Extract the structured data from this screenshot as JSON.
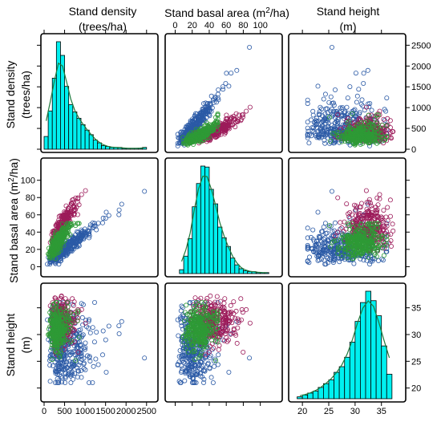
{
  "chart_data": {
    "type": "scatter-matrix",
    "variables": [
      {
        "key": "density",
        "label_line1": "Stand density",
        "label_line2": "(trees/ha)",
        "range": [
          0,
          2700
        ],
        "ticks": [
          0,
          500,
          1000,
          1500,
          2000,
          2500
        ]
      },
      {
        "key": "basal",
        "label_line1": "Stand basal area (m",
        "label_sup": "2",
        "label_line1_end": "/ha)",
        "range": [
          -8,
          122
        ],
        "ticks": [
          0,
          20,
          40,
          60,
          80,
          100
        ]
      },
      {
        "key": "height",
        "label_line1": "Stand height",
        "label_line2": "(m)",
        "range": [
          18,
          39
        ],
        "ticks": [
          20,
          25,
          30,
          35
        ]
      }
    ],
    "groups": [
      {
        "color": "#2B5AA6"
      },
      {
        "color": "#9C1B5A"
      },
      {
        "color": "#2E9A36"
      }
    ],
    "histograms": [
      {
        "variable": "density",
        "bin_start": 0,
        "bin_width": 100,
        "counts": [
          14,
          42,
          78,
          118,
          103,
          69,
          49,
          41,
          34,
          27,
          21,
          16,
          10,
          7,
          4,
          3,
          2,
          2,
          2,
          1,
          1,
          1,
          1,
          1,
          2
        ]
      },
      {
        "variable": "basal",
        "bin_start": 5,
        "bin_width": 5,
        "counts": [
          4,
          18,
          36,
          69,
          93,
          111,
          110,
          87,
          72,
          48,
          37,
          28,
          16,
          9,
          5,
          3,
          2,
          2,
          1,
          1,
          1
        ]
      },
      {
        "variable": "height",
        "bin_start": 19,
        "bin_width": 1,
        "counts": [
          1,
          2,
          3,
          4,
          6,
          8,
          10,
          14,
          17,
          22,
          30,
          41,
          51,
          57,
          52,
          44,
          28,
          13
        ]
      }
    ],
    "hist_color": "#00F0F0",
    "density_line_color": "#1E7A3C",
    "point_counts": [
      360,
      300,
      320
    ],
    "point_marker": "open-circle"
  }
}
